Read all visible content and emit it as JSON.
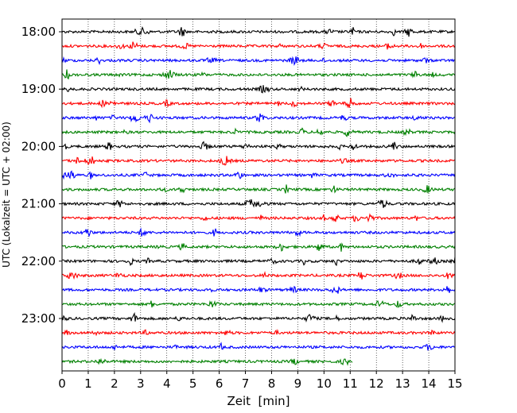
{
  "chart_data": {
    "type": "line",
    "title": "",
    "xlabel": "Zeit  [min]",
    "ylabel": "UTC (Lokalzeit = UTC + 02:00)",
    "xlim": [
      0,
      15
    ],
    "x_ticks": [
      0,
      1,
      2,
      3,
      4,
      5,
      6,
      7,
      8,
      9,
      10,
      11,
      12,
      13,
      14,
      15
    ],
    "y_ticks": [
      "18:00",
      "19:00",
      "20:00",
      "21:00",
      "22:00",
      "23:00"
    ],
    "grid": "vertical dotted at each minute",
    "trace_colors": [
      "#000000",
      "#ff0000",
      "#0000ff",
      "#008000"
    ],
    "series": [
      {
        "start": "18:00",
        "x_end": 15,
        "color": "#000000"
      },
      {
        "start": "18:15",
        "x_end": 15,
        "color": "#ff0000"
      },
      {
        "start": "18:30",
        "x_end": 15,
        "color": "#0000ff"
      },
      {
        "start": "18:45",
        "x_end": 15,
        "color": "#008000"
      },
      {
        "start": "19:00",
        "x_end": 15,
        "color": "#000000"
      },
      {
        "start": "19:15",
        "x_end": 15,
        "color": "#ff0000"
      },
      {
        "start": "19:30",
        "x_end": 15,
        "color": "#0000ff"
      },
      {
        "start": "19:45",
        "x_end": 15,
        "color": "#008000"
      },
      {
        "start": "20:00",
        "x_end": 15,
        "color": "#000000"
      },
      {
        "start": "20:15",
        "x_end": 15,
        "color": "#ff0000"
      },
      {
        "start": "20:30",
        "x_end": 15,
        "color": "#0000ff"
      },
      {
        "start": "20:45",
        "x_end": 15,
        "color": "#008000"
      },
      {
        "start": "21:00",
        "x_end": 15,
        "color": "#000000"
      },
      {
        "start": "21:15",
        "x_end": 15,
        "color": "#ff0000"
      },
      {
        "start": "21:30",
        "x_end": 15,
        "color": "#0000ff"
      },
      {
        "start": "21:45",
        "x_end": 15,
        "color": "#008000"
      },
      {
        "start": "22:00",
        "x_end": 15,
        "color": "#000000"
      },
      {
        "start": "22:15",
        "x_end": 15,
        "color": "#ff0000"
      },
      {
        "start": "22:30",
        "x_end": 15,
        "color": "#0000ff"
      },
      {
        "start": "22:45",
        "x_end": 15,
        "color": "#008000"
      },
      {
        "start": "23:00",
        "x_end": 15,
        "color": "#000000"
      },
      {
        "start": "23:15",
        "x_end": 15,
        "color": "#ff0000"
      },
      {
        "start": "23:30",
        "x_end": 15,
        "color": "#0000ff"
      },
      {
        "start": "23:45",
        "x_end": 11.1,
        "color": "#008000"
      }
    ]
  }
}
